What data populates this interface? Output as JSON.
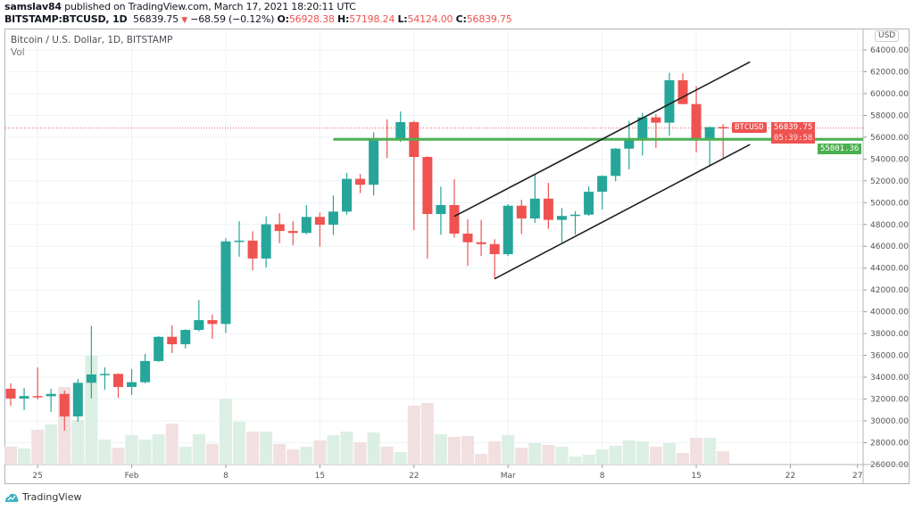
{
  "header": {
    "author": "samslav84",
    "published": " published on TradingView.com, March 17, 2021 18:20:11 UTC",
    "symbol": "BITSTAMP:BTCUSD, 1D",
    "last": "56839.75",
    "change": "−68.59 (−0.12%)",
    "o_label": "O:",
    "o": "56928.38",
    "h_label": "H:",
    "h": "57198.24",
    "l_label": "L:",
    "l": "54124.00",
    "c_label": "C:",
    "c": "56839.75"
  },
  "legend": {
    "title": "Bitcoin / U.S. Dollar, 1D, BITSTAMP",
    "vol": "Vol"
  },
  "price_axis": {
    "currency": "USD"
  },
  "labels": {
    "symbol_tag": "BTCUSD",
    "price": "56839.75",
    "countdown": "05:39:58",
    "support": "55801.36"
  },
  "footer": {
    "brand": "TradingView"
  },
  "colors": {
    "up": "#26a69a",
    "down": "#ef5350",
    "support": "#4caf50",
    "channel": "#1e1e1e",
    "up_volume": "#dcefe4",
    "down_volume": "#f2e0e1"
  },
  "chart_data": {
    "type": "candlestick",
    "title": "Bitcoin / U.S. Dollar, 1D, BITSTAMP",
    "ylim": [
      26000,
      64000
    ],
    "yticks": [
      26000,
      28000,
      30000,
      32000,
      34000,
      36000,
      38000,
      40000,
      42000,
      44000,
      46000,
      48000,
      50000,
      52000,
      54000,
      56000,
      58000,
      60000,
      62000,
      64000
    ],
    "xticks": [
      {
        "date": "2021-01-25",
        "label": "25"
      },
      {
        "date": "2021-02-01",
        "label": "Feb"
      },
      {
        "date": "2021-02-08",
        "label": "8"
      },
      {
        "date": "2021-02-15",
        "label": "15"
      },
      {
        "date": "2021-02-22",
        "label": "22"
      },
      {
        "date": "2021-03-01",
        "label": "Mar"
      },
      {
        "date": "2021-03-08",
        "label": "8"
      },
      {
        "date": "2021-03-15",
        "label": "15"
      },
      {
        "date": "2021-03-22",
        "label": "22"
      },
      {
        "date": "2021-03-27",
        "label": "27"
      }
    ],
    "grid": true,
    "volume_note": "relative volume units (no volume axis printed)",
    "candles": [
      [
        "2021-01-23",
        32943,
        33434,
        31390,
        32044,
        20
      ],
      [
        "2021-01-24",
        32044,
        33025,
        30980,
        32270,
        18
      ],
      [
        "2021-01-25",
        32270,
        34900,
        31960,
        32250,
        39
      ],
      [
        "2021-01-26",
        32250,
        32940,
        30820,
        32470,
        45
      ],
      [
        "2021-01-27",
        32470,
        32780,
        29100,
        30400,
        87
      ],
      [
        "2021-01-28",
        30400,
        33840,
        29920,
        33490,
        50
      ],
      [
        "2021-01-29",
        33490,
        38700,
        32040,
        34250,
        122
      ],
      [
        "2021-01-30",
        34250,
        34900,
        32860,
        34300,
        28
      ],
      [
        "2021-01-31",
        34300,
        34350,
        32120,
        33100,
        19
      ],
      [
        "2021-02-01",
        33100,
        34740,
        32380,
        33540,
        33
      ],
      [
        "2021-02-02",
        33540,
        36130,
        33440,
        35480,
        28
      ],
      [
        "2021-02-03",
        35480,
        37750,
        35400,
        37700,
        34
      ],
      [
        "2021-02-04",
        37700,
        38750,
        36220,
        37020,
        46
      ],
      [
        "2021-02-05",
        37020,
        38400,
        36640,
        38330,
        20
      ],
      [
        "2021-02-06",
        38330,
        41060,
        38200,
        39230,
        34
      ],
      [
        "2021-02-07",
        39230,
        39750,
        37520,
        38880,
        23
      ],
      [
        "2021-02-08",
        38880,
        46730,
        38060,
        46450,
        74
      ],
      [
        "2021-02-09",
        46450,
        48300,
        45040,
        46520,
        48
      ],
      [
        "2021-02-10",
        46520,
        47380,
        43790,
        44880,
        37
      ],
      [
        "2021-02-11",
        44880,
        48740,
        44050,
        48020,
        37
      ],
      [
        "2021-02-12",
        48020,
        49040,
        46290,
        47400,
        23
      ],
      [
        "2021-02-13",
        47400,
        48290,
        46100,
        47220,
        17
      ],
      [
        "2021-02-14",
        47220,
        49780,
        47110,
        48690,
        20
      ],
      [
        "2021-02-15",
        48690,
        49100,
        45960,
        47980,
        27
      ],
      [
        "2021-02-16",
        47980,
        50650,
        47050,
        49180,
        33
      ],
      [
        "2021-02-17",
        49180,
        52720,
        48900,
        52180,
        37
      ],
      [
        "2021-02-18",
        52180,
        52640,
        50870,
        51640,
        25
      ],
      [
        "2021-02-19",
        51640,
        56460,
        50650,
        55910,
        36
      ],
      [
        "2021-02-20",
        55910,
        57630,
        54090,
        55800,
        20
      ],
      [
        "2021-02-21",
        55800,
        58360,
        55560,
        57380,
        14
      ],
      [
        "2021-02-22",
        57380,
        57500,
        47470,
        54190,
        66
      ],
      [
        "2021-02-23",
        54190,
        54250,
        44880,
        48960,
        69
      ],
      [
        "2021-02-24",
        48960,
        51470,
        47060,
        49780,
        34
      ],
      [
        "2021-02-25",
        49780,
        52150,
        46780,
        47160,
        31
      ],
      [
        "2021-02-26",
        47160,
        48470,
        44200,
        46370,
        32
      ],
      [
        "2021-02-27",
        46370,
        48420,
        45100,
        46200,
        12
      ],
      [
        "2021-02-28",
        46200,
        46650,
        43020,
        45280,
        26
      ],
      [
        "2021-03-01",
        45280,
        49860,
        45100,
        49720,
        33
      ],
      [
        "2021-03-02",
        49720,
        50270,
        47110,
        48550,
        19
      ],
      [
        "2021-03-03",
        48550,
        52560,
        48150,
        50370,
        24
      ],
      [
        "2021-03-04",
        50370,
        51820,
        47600,
        48420,
        22
      ],
      [
        "2021-03-05",
        48420,
        49510,
        46370,
        48780,
        20
      ],
      [
        "2021-03-06",
        48780,
        49230,
        47060,
        48900,
        9
      ],
      [
        "2021-03-07",
        48900,
        51490,
        48800,
        51000,
        11
      ],
      [
        "2021-03-08",
        51000,
        52500,
        49370,
        52450,
        17
      ],
      [
        "2021-03-09",
        52450,
        55000,
        51960,
        54950,
        21
      ],
      [
        "2021-03-10",
        54950,
        57490,
        53050,
        55910,
        27
      ],
      [
        "2021-03-11",
        55910,
        58220,
        54330,
        57820,
        26
      ],
      [
        "2021-03-12",
        57820,
        58140,
        55030,
        57330,
        20
      ],
      [
        "2021-03-13",
        57330,
        61900,
        56130,
        61220,
        24
      ],
      [
        "2021-03-14",
        61220,
        61850,
        59000,
        59040,
        13
      ],
      [
        "2021-03-15",
        59040,
        60680,
        54600,
        55770,
        30
      ],
      [
        "2021-03-16",
        55770,
        56950,
        53320,
        56928,
        30
      ],
      [
        "2021-03-17",
        56928.38,
        57198.24,
        54124,
        56839.75,
        15
      ]
    ],
    "candle_fields": [
      "date",
      "open",
      "high",
      "low",
      "close",
      "volume"
    ],
    "trendlines": [
      {
        "name": "channel-upper",
        "from": [
          "2021-02-25",
          48740
        ],
        "to": [
          "2021-03-19",
          62900
        ]
      },
      {
        "name": "channel-lower",
        "from": [
          "2021-02-28",
          43020
        ],
        "to": [
          "2021-03-19",
          55330
        ]
      }
    ],
    "horizontal_line": {
      "from": "2021-02-16",
      "price": 55801.36
    },
    "last_price_line": 56839.75
  }
}
